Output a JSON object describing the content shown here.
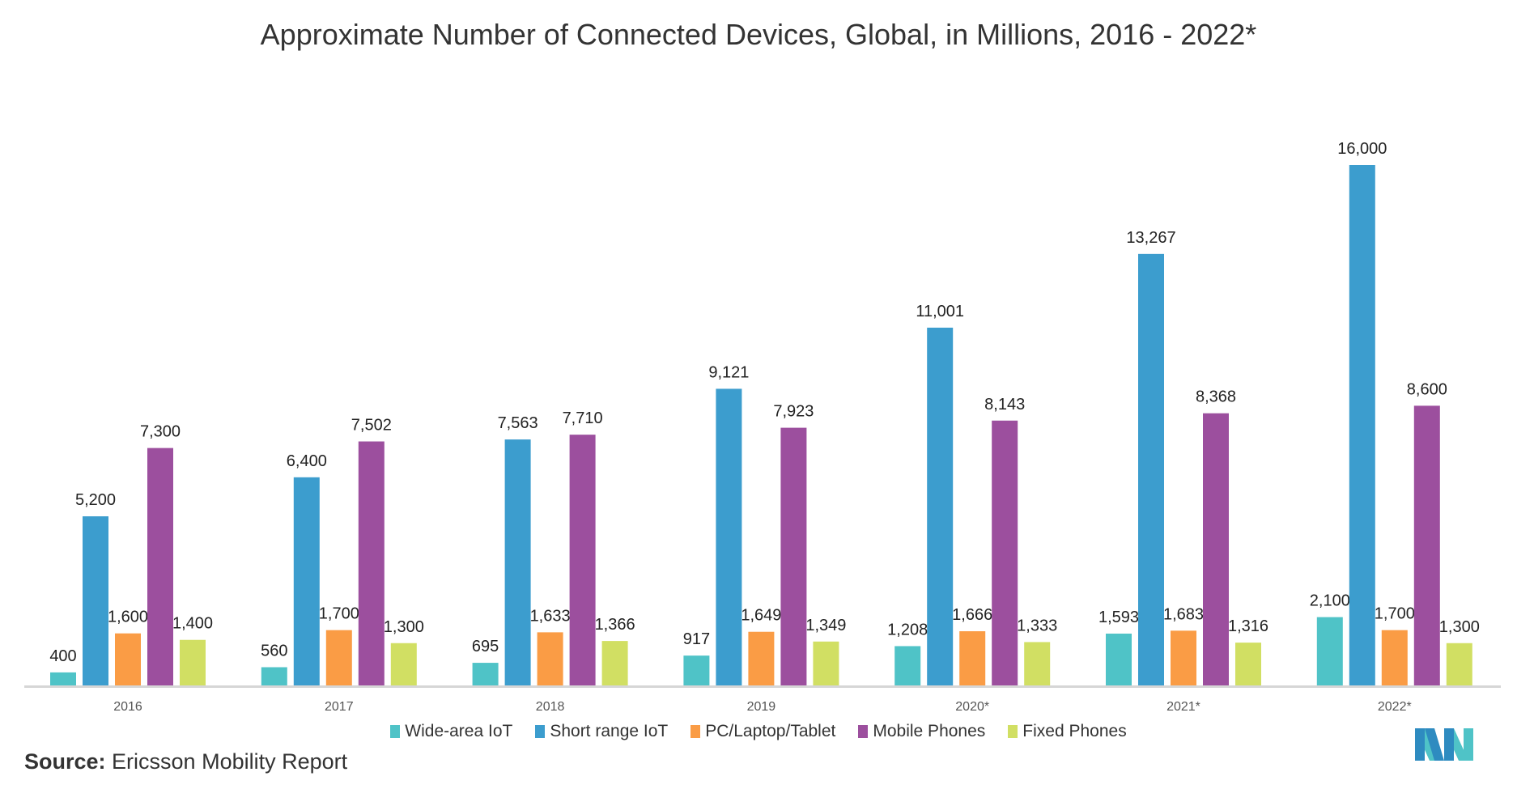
{
  "chart_data": {
    "type": "bar",
    "title": "Approximate Number of Connected Devices, Global, in Millions, 2016 - 2022*",
    "categories": [
      "2016",
      "2017",
      "2018",
      "2019",
      "2020*",
      "2021*",
      "2022*"
    ],
    "series": [
      {
        "name": "Wide-area IoT",
        "color": "#4FC3C7",
        "values": [
          400,
          560,
          695,
          917,
          1208,
          1593,
          2100
        ]
      },
      {
        "name": "Short range IoT",
        "color": "#3C9DCE",
        "values": [
          5200,
          6400,
          7563,
          9121,
          11001,
          13267,
          16000
        ]
      },
      {
        "name": "PC/Laptop/Tablet",
        "color": "#FA9C45",
        "values": [
          1600,
          1700,
          1633,
          1649,
          1666,
          1683,
          1700
        ]
      },
      {
        "name": "Mobile Phones",
        "color": "#9C4F9E",
        "values": [
          7300,
          7502,
          7710,
          7923,
          8143,
          8368,
          8600
        ]
      },
      {
        "name": "Fixed Phones",
        "color": "#D1DF63",
        "values": [
          1400,
          1300,
          1366,
          1349,
          1333,
          1316,
          1300
        ]
      }
    ],
    "ylim": [
      0,
      16000
    ],
    "grid": false,
    "legend_position": "bottom",
    "xlabel": "",
    "ylabel": ""
  },
  "source": {
    "label": "Source:",
    "text": "Ericsson Mobility Report"
  },
  "logo": {
    "name": "mordor-intelligence-logo",
    "colors": [
      "#4FC3C7",
      "#2E8BC0"
    ]
  }
}
